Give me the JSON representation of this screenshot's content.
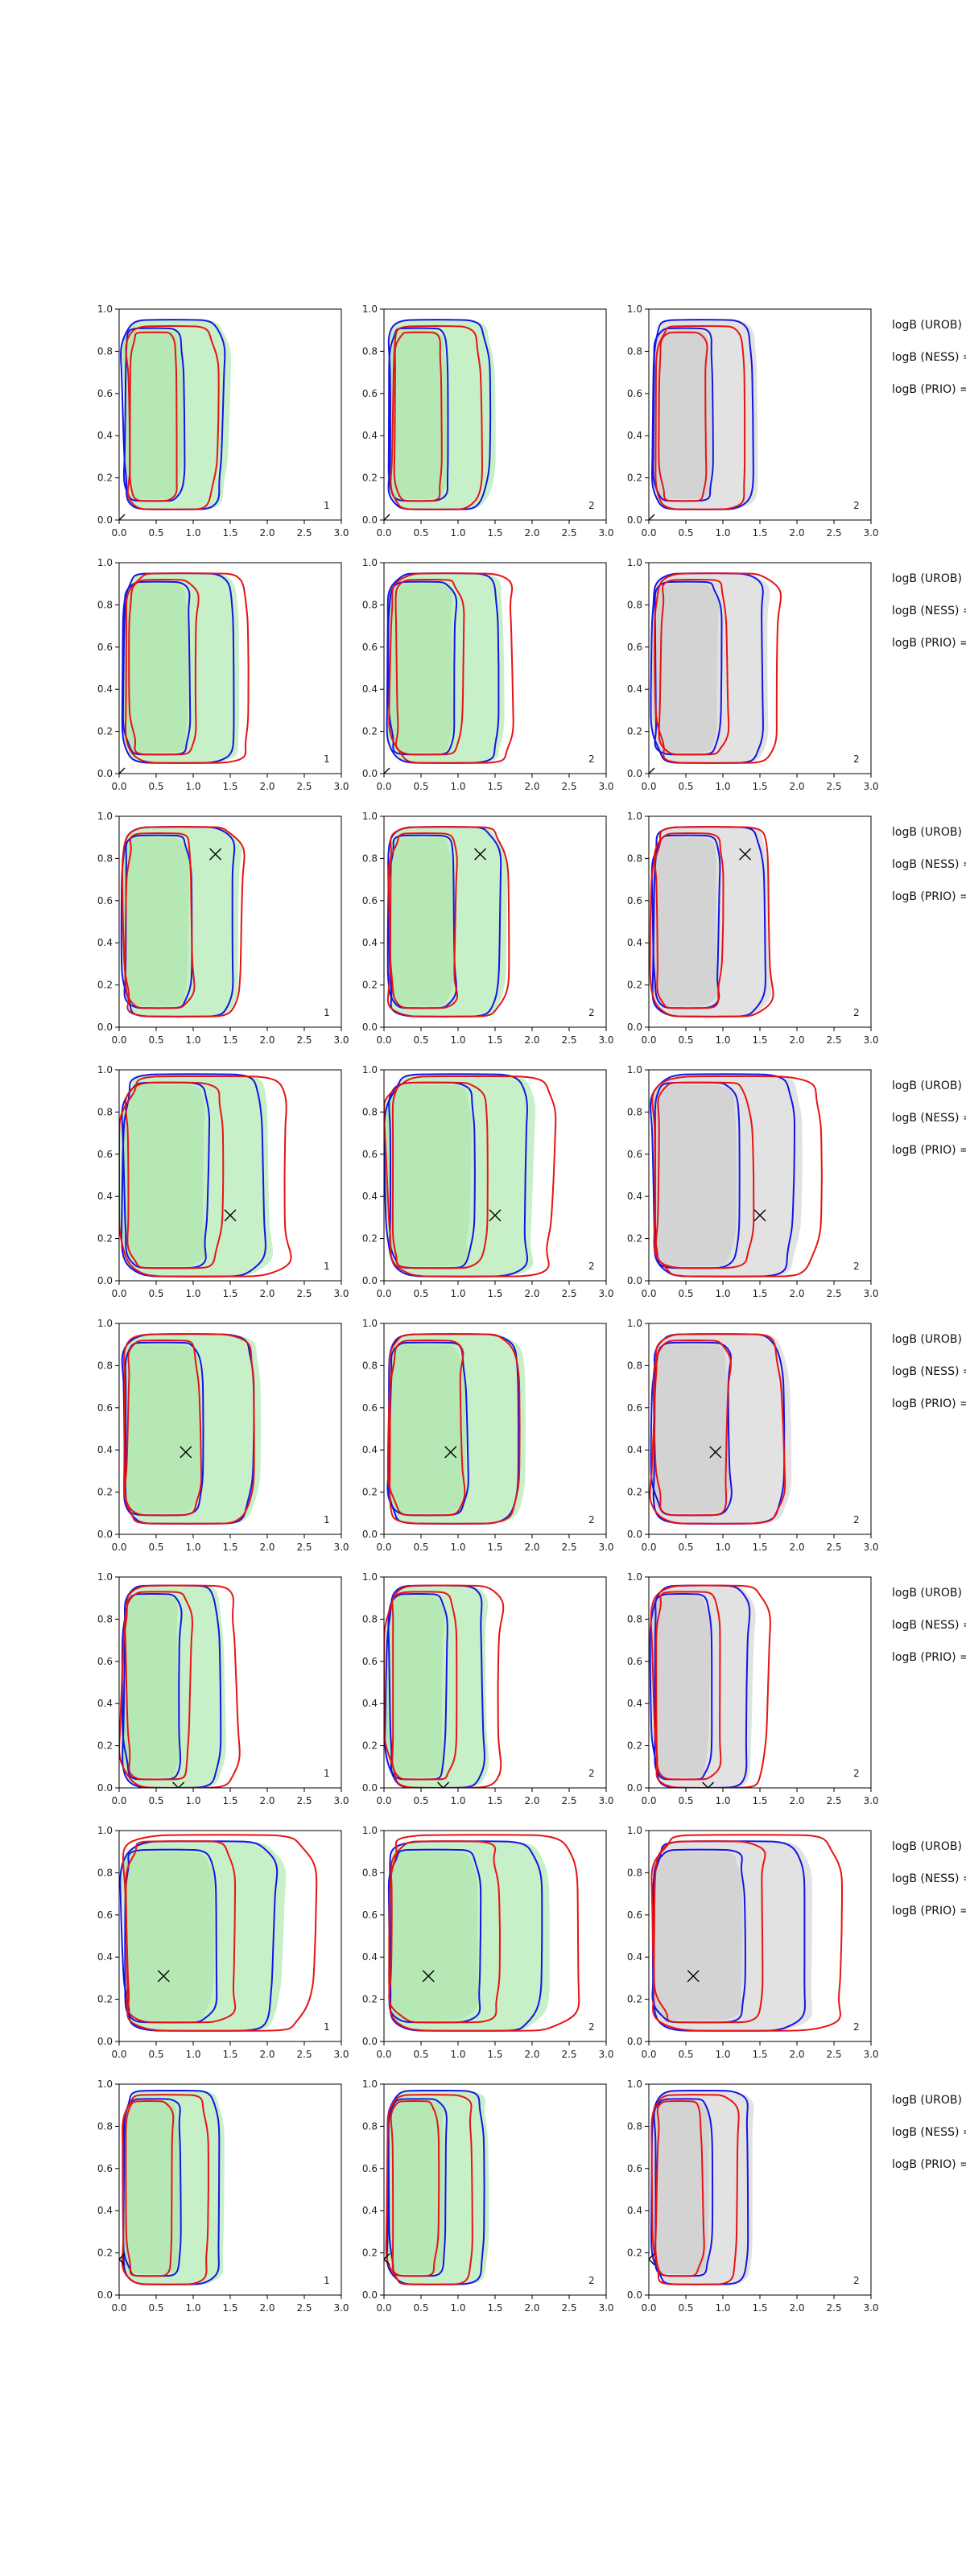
{
  "chart_data": {
    "type": "contour",
    "layout": "8 rows x 3 columns of contour panels",
    "xlim": [
      0.0,
      3.0
    ],
    "ylim": [
      0.0,
      1.0
    ],
    "xticks": [
      "0.0",
      "0.5",
      "1.0",
      "1.5",
      "2.0",
      "2.5",
      "3.0"
    ],
    "yticks": [
      "0.0",
      "0.2",
      "0.4",
      "0.6",
      "0.8",
      "1.0"
    ],
    "panel_numbers": [
      "1",
      "2",
      "2"
    ],
    "annotations": [
      "logB (UROB) =",
      "logB (NESS) =",
      "logB (PRIO) ="
    ],
    "colors": {
      "fill_green": "#c8f0c8",
      "fill_green_inner": "#b0e6b0",
      "fill_gray": "#e2e2e2",
      "fill_gray_inner": "#cfcfcf",
      "blue": "#1414e6",
      "red": "#e61414",
      "axis": "#000000"
    },
    "rows": [
      {
        "truth": [
          0.0,
          0.0
        ],
        "blue": [
          0.05,
          1.4,
          0.05,
          0.95
        ],
        "red": [
          0.1,
          1.3,
          0.05,
          0.92
        ]
      },
      {
        "truth": [
          0.0,
          0.0
        ],
        "blue": [
          0.05,
          1.55,
          0.05,
          0.95
        ],
        "red": [
          0.1,
          1.75,
          0.05,
          0.95
        ]
      },
      {
        "truth": [
          1.3,
          0.82
        ],
        "blue": [
          0.05,
          1.55,
          0.05,
          0.95
        ],
        "red": [
          0.05,
          1.65,
          0.05,
          0.95
        ]
      },
      {
        "truth": [
          1.5,
          0.31
        ],
        "blue": [
          0.05,
          1.95,
          0.02,
          0.98
        ],
        "red": [
          0.05,
          2.3,
          0.02,
          0.97
        ]
      },
      {
        "truth": [
          0.9,
          0.39
        ],
        "blue": [
          0.05,
          1.8,
          0.05,
          0.95
        ],
        "red": [
          0.05,
          1.8,
          0.05,
          0.95
        ]
      },
      {
        "truth": [
          0.8,
          0.0
        ],
        "blue": [
          0.05,
          1.35,
          0.0,
          0.96
        ],
        "red": [
          0.05,
          1.6,
          0.0,
          0.96
        ]
      },
      {
        "truth": [
          0.6,
          0.31
        ],
        "blue": [
          0.05,
          2.1,
          0.05,
          0.95
        ],
        "red": [
          0.05,
          2.6,
          0.05,
          0.98
        ]
      },
      {
        "truth": [
          0.0,
          0.17
        ],
        "blue": [
          0.05,
          1.35,
          0.05,
          0.97
        ],
        "red": [
          0.05,
          1.2,
          0.05,
          0.95
        ]
      }
    ]
  }
}
